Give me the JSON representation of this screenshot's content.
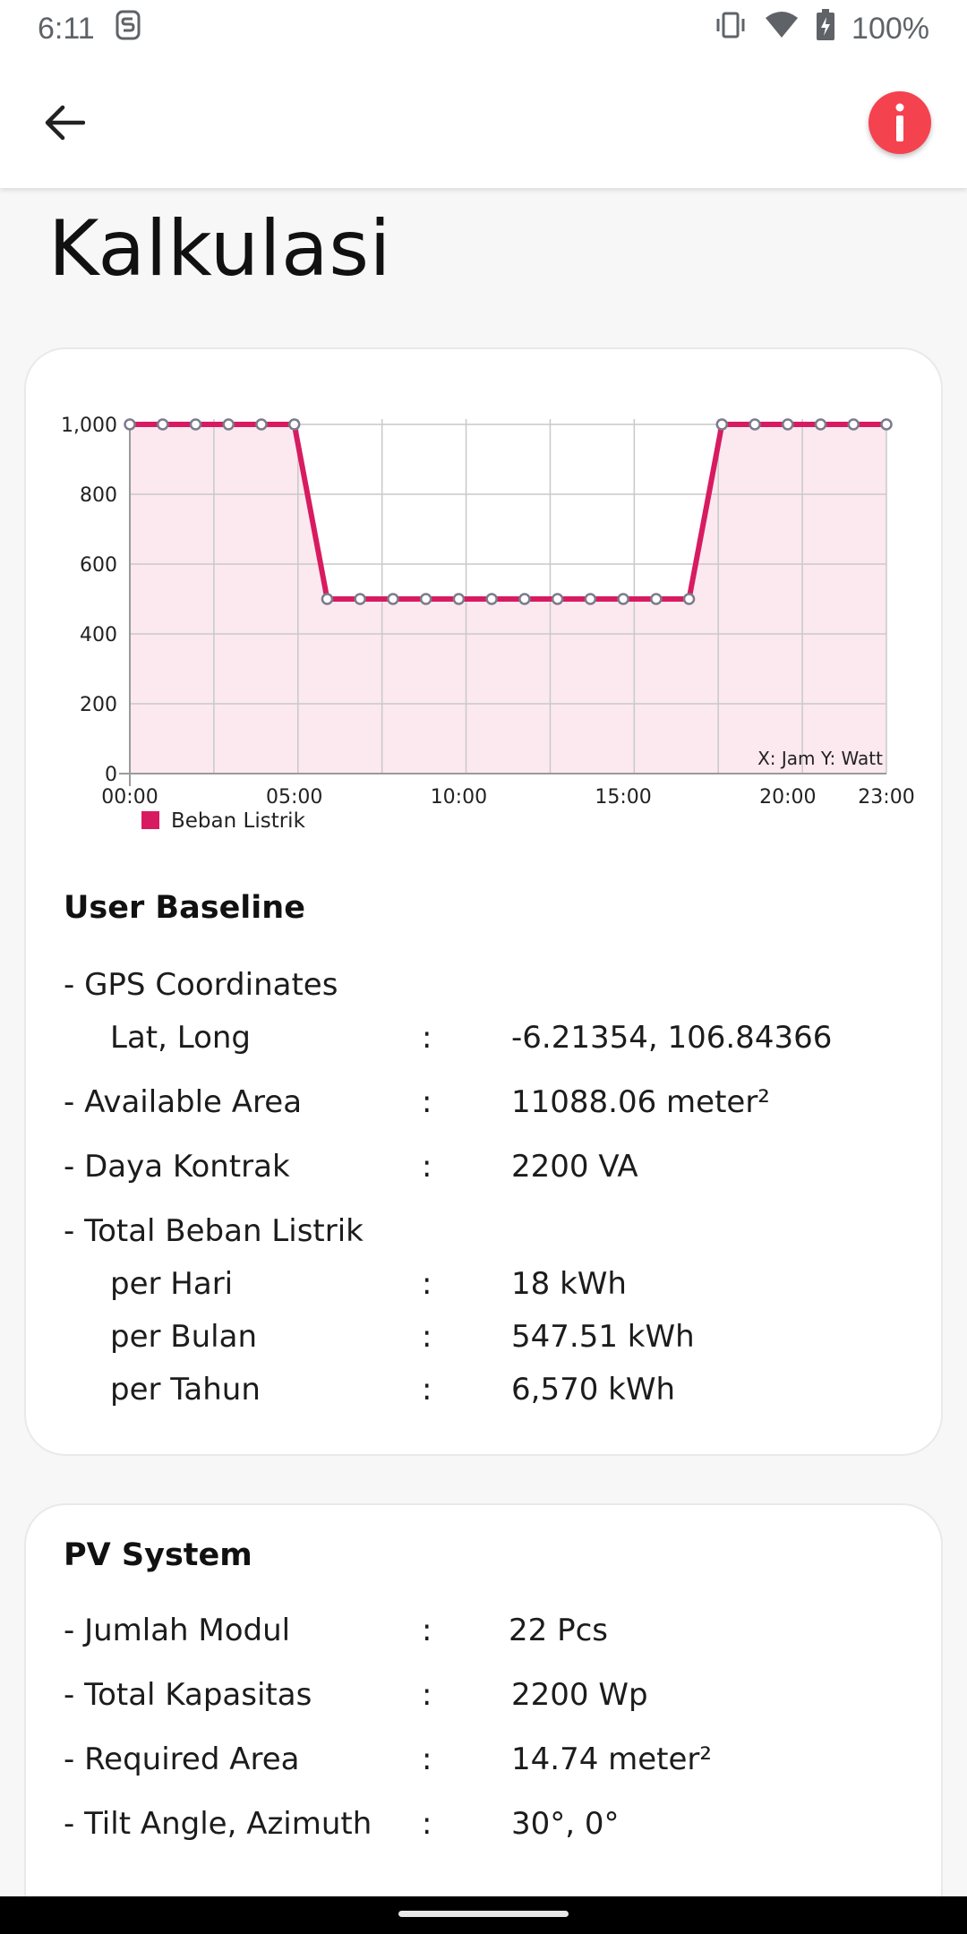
{
  "status_bar": {
    "time": "6:11",
    "battery": "100%",
    "icons": [
      "notification-s-icon",
      "vibrate-icon",
      "wifi-icon",
      "battery-charging-icon"
    ]
  },
  "app_bar": {
    "back_icon": "arrow-left-icon",
    "info_icon": "info-icon",
    "info_color": "#f5424f"
  },
  "page": {
    "title": "Kalkulasi"
  },
  "chart_data": {
    "type": "area",
    "x": [
      "00:00",
      "01:00",
      "02:00",
      "03:00",
      "04:00",
      "05:00",
      "06:00",
      "07:00",
      "08:00",
      "09:00",
      "10:00",
      "11:00",
      "12:00",
      "13:00",
      "14:00",
      "15:00",
      "16:00",
      "17:00",
      "18:00",
      "19:00",
      "20:00",
      "21:00",
      "22:00",
      "23:00"
    ],
    "series": [
      {
        "name": "Beban Listrik",
        "values": [
          1000,
          1000,
          1000,
          1000,
          1000,
          1000,
          500,
          500,
          500,
          500,
          500,
          500,
          500,
          500,
          500,
          500,
          500,
          500,
          1000,
          1000,
          1000,
          1000,
          1000,
          1000
        ],
        "color": "#d81b60"
      }
    ],
    "xtick_labels": [
      "00:00",
      "05:00",
      "10:00",
      "15:00",
      "20:00",
      "23:00"
    ],
    "ytick_labels": [
      "0",
      "200",
      "400",
      "600",
      "800",
      "1,000"
    ],
    "ylim": [
      0,
      1000
    ],
    "annotation": "X: Jam Y: Watt",
    "grid": true,
    "legend": "bottom-left",
    "fill_color": "#fbe9ef"
  },
  "user_baseline": {
    "title": "User Baseline",
    "gps_label": "- GPS Coordinates",
    "latlong_label": "Lat, Long",
    "latlong_value": "-6.21354, 106.84366",
    "area_label": "- Available Area",
    "area_value": "11088.06 meter²",
    "daya_label": "- Daya Kontrak",
    "daya_value": "2200 VA",
    "beban_label": "- Total Beban Listrik",
    "per_hari_label": "per Hari",
    "per_hari_value": "18 kWh",
    "per_bulan_label": "per Bulan",
    "per_bulan_value": "547.51 kWh",
    "per_tahun_label": "per Tahun",
    "per_tahun_value": "6,570 kWh",
    "colon": ":"
  },
  "pv_system": {
    "title": "PV System",
    "modul_label": "- Jumlah Modul",
    "modul_value": "22 Pcs",
    "kapasitas_label": "- Total Kapasitas",
    "kapasitas_value": "2200 Wp",
    "req_area_label": "- Required Area",
    "req_area_value": "14.74 meter²",
    "tilt_label": "- Tilt Angle, Azimuth",
    "tilt_value": "30°, 0°",
    "colon": ":"
  }
}
